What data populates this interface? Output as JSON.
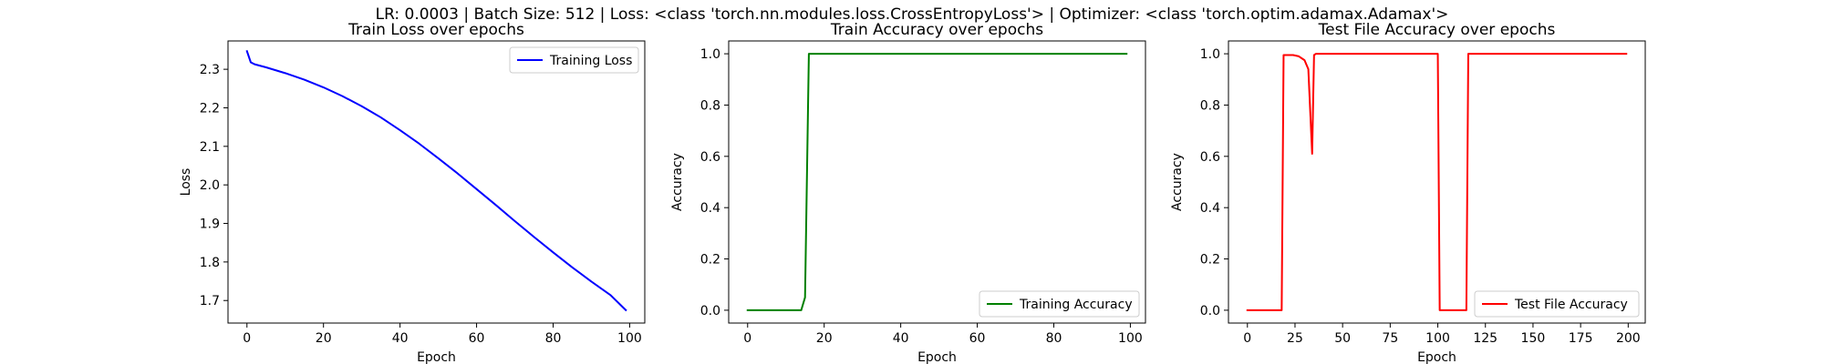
{
  "suptitle": "LR: 0.0003 | Batch Size: 512 | Loss: <class 'torch.nn.modules.loss.CrossEntropyLoss'> | Optimizer: <class 'torch.optim.adamax.Adamax'>",
  "chart_data": [
    {
      "type": "line",
      "title": "Train Loss over epochs",
      "xlabel": "Epoch",
      "ylabel": "Loss",
      "xlim": [
        -4.95,
        103.95
      ],
      "ylim": [
        1.6415,
        2.3735
      ],
      "xticks": [
        0,
        20,
        40,
        60,
        80,
        100
      ],
      "yticks": [
        1.7,
        1.8,
        1.9,
        2.0,
        2.1,
        2.2,
        2.3
      ],
      "ytick_decimals": 1,
      "legend": "top-right",
      "grid": false,
      "series": [
        {
          "name": "Training Loss",
          "color": "#0000ff",
          "x": [
            0,
            1,
            2,
            5,
            10,
            15,
            20,
            25,
            30,
            35,
            40,
            45,
            50,
            55,
            60,
            65,
            70,
            75,
            80,
            85,
            90,
            95,
            99
          ],
          "y": [
            2.347,
            2.318,
            2.313,
            2.305,
            2.29,
            2.273,
            2.253,
            2.23,
            2.204,
            2.175,
            2.142,
            2.107,
            2.069,
            2.03,
            1.989,
            1.948,
            1.906,
            1.865,
            1.825,
            1.786,
            1.749,
            1.714,
            1.675
          ]
        }
      ]
    },
    {
      "type": "line",
      "title": "Train Accuracy over epochs",
      "xlabel": "Epoch",
      "ylabel": "Accuracy",
      "xlim": [
        -4.95,
        103.95
      ],
      "ylim": [
        -0.05,
        1.05
      ],
      "xticks": [
        0,
        20,
        40,
        60,
        80,
        100
      ],
      "yticks": [
        0.0,
        0.2,
        0.4,
        0.6,
        0.8,
        1.0
      ],
      "ytick_decimals": 1,
      "legend": "bottom-right",
      "grid": false,
      "series": [
        {
          "name": "Training Accuracy",
          "color": "#008000",
          "x": [
            0,
            14,
            15,
            16,
            99
          ],
          "y": [
            0.0,
            0.0,
            0.05,
            1.0,
            1.0
          ]
        }
      ]
    },
    {
      "type": "line",
      "title": "Test File Accuracy over epochs",
      "xlabel": "Epoch",
      "ylabel": "Accuracy",
      "xlim": [
        -9.95,
        208.95
      ],
      "ylim": [
        -0.05,
        1.05
      ],
      "xticks": [
        0,
        25,
        50,
        75,
        100,
        125,
        150,
        175,
        200
      ],
      "yticks": [
        0.0,
        0.2,
        0.4,
        0.6,
        0.8,
        1.0
      ],
      "ytick_decimals": 1,
      "legend": "bottom-right",
      "grid": false,
      "series": [
        {
          "name": "Test File Accuracy",
          "color": "#ff0000",
          "x": [
            0,
            18,
            19,
            24,
            27,
            30,
            32,
            34,
            35,
            36,
            100,
            101,
            115,
            116,
            199
          ],
          "y": [
            0.0,
            0.0,
            0.995,
            0.995,
            0.99,
            0.975,
            0.94,
            0.61,
            0.995,
            1.0,
            1.0,
            0.0,
            0.0,
            1.0,
            1.0
          ]
        }
      ]
    }
  ]
}
